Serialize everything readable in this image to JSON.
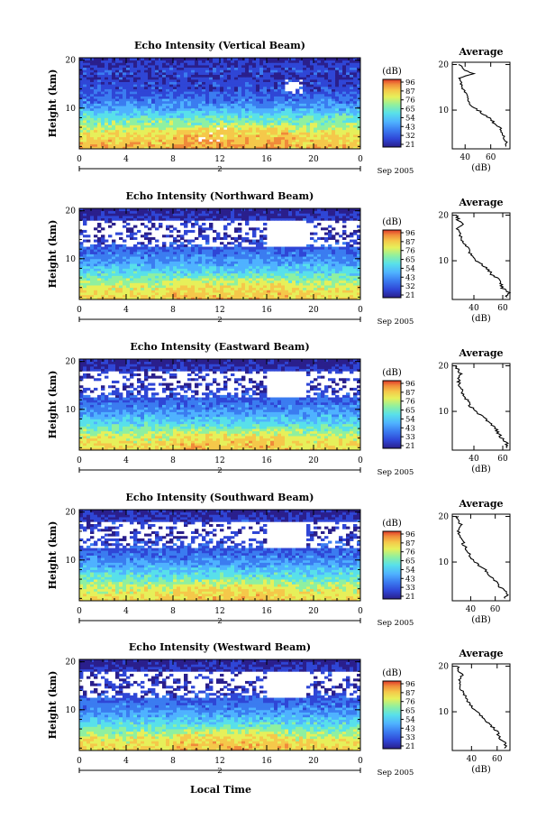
{
  "figure": {
    "xlabel": "Local Time"
  },
  "colorbar": {
    "unit": "(dB)",
    "ticks_per_panel": [
      [
        "96",
        "87",
        "76",
        "65",
        "54",
        "43",
        "32",
        "21"
      ],
      [
        "96",
        "87",
        "76",
        "65",
        "54",
        "43",
        "32",
        "21"
      ],
      [
        "96",
        "87",
        "76",
        "65",
        "54",
        "43",
        "33",
        "21"
      ],
      [
        "96",
        "87",
        "76",
        "65",
        "54",
        "43",
        "33",
        "21"
      ],
      [
        "96",
        "87",
        "76",
        "65",
        "54",
        "43",
        "33",
        "21"
      ]
    ],
    "colors": [
      "#2a1f8c",
      "#2f46d6",
      "#3b7cf0",
      "#4fb2ff",
      "#58e0ea",
      "#8ff0a0",
      "#e6f05a",
      "#f5c84a",
      "#f08a3a",
      "#e03a2a"
    ]
  },
  "chart_data": [
    {
      "type": "heatmap",
      "title": "Echo Intensity (Vertical Beam)",
      "ylabel": "Height (km)",
      "x_ticks": [
        "0",
        "4",
        "8",
        "12",
        "16",
        "20",
        "0"
      ],
      "y_ticks": [
        "20",
        "10"
      ],
      "xlim": [
        0,
        24
      ],
      "ylim": [
        1.5,
        20.5
      ],
      "date_marker": "2",
      "date_label": "Sep 2005",
      "heights_km": [
        2,
        4,
        6,
        8,
        10,
        12,
        14,
        16,
        18,
        20
      ],
      "typical_intensity_db": [
        78,
        75,
        66,
        58,
        45,
        38,
        33,
        30,
        32,
        27
      ],
      "profile": {
        "title": "Average",
        "xlabel": "(dB)",
        "x_ticks": [
          "40",
          "60"
        ],
        "y_ticks": [
          "20",
          "10"
        ],
        "xlim": [
          30,
          75
        ],
        "height_km": [
          2,
          3,
          4,
          5,
          6,
          7,
          8,
          9,
          10,
          11,
          12,
          13,
          14,
          15,
          16,
          17,
          18,
          19,
          20
        ],
        "mean_db": [
          72,
          73,
          70,
          69,
          68,
          63,
          60,
          55,
          50,
          45,
          43,
          41,
          40,
          38,
          37,
          36,
          47,
          38,
          36
        ]
      }
    },
    {
      "type": "heatmap",
      "title": "Echo Intensity (Northward Beam)",
      "ylabel": "Height (km)",
      "x_ticks": [
        "0",
        "4",
        "8",
        "12",
        "16",
        "20",
        "0"
      ],
      "y_ticks": [
        "20",
        "10"
      ],
      "xlim": [
        0,
        24
      ],
      "ylim": [
        1.5,
        20.5
      ],
      "date_marker": "2",
      "date_label": "Sep 2005",
      "heights_km": [
        2,
        4,
        6,
        8,
        10,
        12,
        14,
        16,
        18,
        20
      ],
      "typical_intensity_db": [
        74,
        70,
        60,
        50,
        42,
        36,
        30,
        27,
        31,
        25
      ],
      "profile": {
        "title": "Average",
        "xlabel": "(dB)",
        "x_ticks": [
          "40",
          "60"
        ],
        "y_ticks": [
          "20",
          "10"
        ],
        "xlim": [
          25,
          65
        ],
        "height_km": [
          2,
          3,
          4,
          5,
          6,
          7,
          8,
          9,
          10,
          11,
          12,
          13,
          14,
          15,
          16,
          17,
          18,
          19,
          20
        ],
        "mean_db": [
          62,
          64,
          60,
          58,
          57,
          52,
          50,
          46,
          42,
          39,
          37,
          35,
          33,
          31,
          30,
          29,
          32,
          29,
          28
        ]
      }
    },
    {
      "type": "heatmap",
      "title": "Echo Intensity (Eastward Beam)",
      "ylabel": "Height (km)",
      "x_ticks": [
        "0",
        "4",
        "8",
        "12",
        "16",
        "20",
        "0"
      ],
      "y_ticks": [
        "20",
        "10"
      ],
      "xlim": [
        0,
        24
      ],
      "ylim": [
        1.5,
        20.5
      ],
      "date_marker": "2",
      "date_label": "Sep 2005",
      "heights_km": [
        2,
        4,
        6,
        8,
        10,
        12,
        14,
        16,
        18,
        20
      ],
      "typical_intensity_db": [
        74,
        70,
        60,
        50,
        42,
        36,
        30,
        27,
        31,
        25
      ],
      "profile": {
        "title": "Average",
        "xlabel": "(dB)",
        "x_ticks": [
          "40",
          "60"
        ],
        "y_ticks": [
          "20",
          "10"
        ],
        "xlim": [
          25,
          65
        ],
        "height_km": [
          2,
          3,
          4,
          5,
          6,
          7,
          8,
          9,
          10,
          11,
          12,
          13,
          14,
          15,
          16,
          17,
          18,
          19,
          20
        ],
        "mean_db": [
          62,
          63,
          60,
          57,
          56,
          52,
          49,
          45,
          41,
          38,
          36,
          34,
          32,
          31,
          30,
          29,
          31,
          29,
          28
        ]
      }
    },
    {
      "type": "heatmap",
      "title": "Echo Intensity (Southward Beam)",
      "ylabel": "Height (km)",
      "x_ticks": [
        "0",
        "4",
        "8",
        "12",
        "16",
        "20",
        "0"
      ],
      "y_ticks": [
        "20",
        "10"
      ],
      "xlim": [
        0,
        24
      ],
      "ylim": [
        1.5,
        20.5
      ],
      "date_marker": "2",
      "date_label": "Sep 2005",
      "heights_km": [
        2,
        4,
        6,
        8,
        10,
        12,
        14,
        16,
        18,
        20
      ],
      "typical_intensity_db": [
        73,
        69,
        59,
        50,
        42,
        36,
        31,
        28,
        31,
        25
      ],
      "profile": {
        "title": "Average",
        "xlabel": "(dB)",
        "x_ticks": [
          "40",
          "60"
        ],
        "y_ticks": [
          "20",
          "10"
        ],
        "xlim": [
          25,
          72
        ],
        "height_km": [
          2,
          3,
          4,
          5,
          6,
          7,
          8,
          9,
          10,
          11,
          12,
          13,
          14,
          15,
          16,
          17,
          18,
          19,
          20
        ],
        "mean_db": [
          68,
          70,
          66,
          62,
          60,
          56,
          53,
          48,
          44,
          40,
          38,
          36,
          34,
          33,
          31,
          30,
          33,
          30,
          29
        ]
      }
    },
    {
      "type": "heatmap",
      "title": "Echo Intensity (Westward Beam)",
      "ylabel": "Height (km)",
      "x_ticks": [
        "0",
        "4",
        "8",
        "12",
        "16",
        "20",
        "0"
      ],
      "y_ticks": [
        "20",
        "10"
      ],
      "xlim": [
        0,
        24
      ],
      "ylim": [
        1.5,
        20.5
      ],
      "date_marker": "2",
      "date_label": "Sep 2005",
      "heights_km": [
        2,
        4,
        6,
        8,
        10,
        12,
        14,
        16,
        18,
        20
      ],
      "typical_intensity_db": [
        74,
        70,
        60,
        50,
        42,
        36,
        30,
        27,
        31,
        25
      ],
      "profile": {
        "title": "Average",
        "xlabel": "(dB)",
        "x_ticks": [
          "40",
          "60"
        ],
        "y_ticks": [
          "20",
          "10"
        ],
        "xlim": [
          25,
          70
        ],
        "height_km": [
          2,
          3,
          4,
          5,
          6,
          7,
          8,
          9,
          10,
          11,
          12,
          13,
          14,
          15,
          16,
          17,
          18,
          19,
          20
        ],
        "mean_db": [
          66,
          67,
          63,
          61,
          59,
          55,
          52,
          48,
          44,
          40,
          38,
          36,
          34,
          32,
          31,
          30,
          33,
          30,
          29
        ]
      }
    }
  ]
}
